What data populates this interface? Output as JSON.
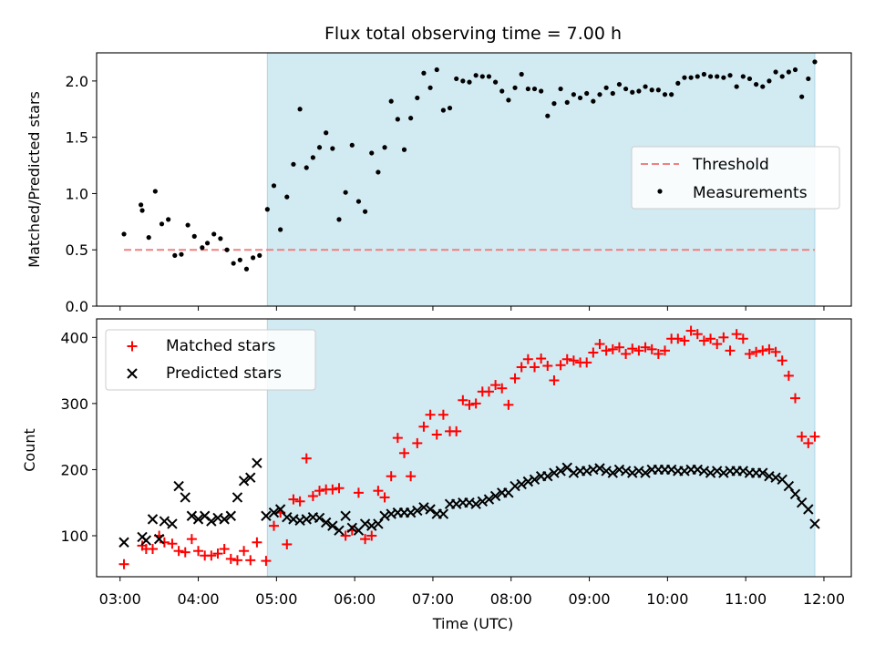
{
  "title": "Flux total observing time = 7.00 h",
  "xlabel": "Time (UTC)",
  "x_ticks": [
    "03:00",
    "04:00",
    "05:00",
    "06:00",
    "07:00",
    "08:00",
    "09:00",
    "10:00",
    "11:00",
    "12:00"
  ],
  "colors": {
    "shade": "#add8e6",
    "threshold": "#f08080",
    "matched": "#ff0000",
    "predicted": "#000000",
    "measurement": "#000000"
  },
  "chart_data": [
    {
      "type": "scatter",
      "ylabel": "Matched/Predicted stars",
      "xlim": [
        "02:42",
        "12:21"
      ],
      "ylim": [
        0,
        2.25
      ],
      "y_ticks": [
        "0.0",
        "0.5",
        "1.0",
        "1.5",
        "2.0"
      ],
      "shaded_span": [
        "04:53",
        "11:53"
      ],
      "legend": {
        "position": "center-right",
        "entries": [
          "Threshold",
          "Measurements"
        ]
      },
      "threshold": {
        "name": "Threshold",
        "value": 0.5,
        "x_range": [
          "03:03",
          "11:53"
        ]
      },
      "series": [
        {
          "name": "Measurements",
          "x": [
            "03:03",
            "03:16",
            "03:17",
            "03:22",
            "03:27",
            "03:32",
            "03:37",
            "03:42",
            "03:47",
            "03:52",
            "03:57",
            "04:03",
            "04:07",
            "04:12",
            "04:17",
            "04:22",
            "04:27",
            "04:32",
            "04:37",
            "04:42",
            "04:47",
            "04:53",
            "04:58",
            "05:03",
            "05:08",
            "05:13",
            "05:18",
            "05:23",
            "05:28",
            "05:33",
            "05:38",
            "05:43",
            "05:48",
            "05:53",
            "05:58",
            "06:03",
            "06:08",
            "06:13",
            "06:18",
            "06:23",
            "06:28",
            "06:33",
            "06:38",
            "06:43",
            "06:48",
            "06:53",
            "06:58",
            "07:03",
            "07:08",
            "07:13",
            "07:18",
            "07:23",
            "07:28",
            "07:33",
            "07:38",
            "07:43",
            "07:48",
            "07:53",
            "07:58",
            "08:03",
            "08:08",
            "08:13",
            "08:18",
            "08:23",
            "08:28",
            "08:33",
            "08:38",
            "08:43",
            "08:48",
            "08:53",
            "08:58",
            "09:03",
            "09:08",
            "09:13",
            "09:18",
            "09:23",
            "09:28",
            "09:33",
            "09:38",
            "09:43",
            "09:48",
            "09:53",
            "09:58",
            "10:03",
            "10:08",
            "10:13",
            "10:18",
            "10:23",
            "10:28",
            "10:33",
            "10:38",
            "10:43",
            "10:48",
            "10:53",
            "10:58",
            "11:03",
            "11:08",
            "11:13",
            "11:18",
            "11:23",
            "11:28",
            "11:33",
            "11:38",
            "11:43",
            "11:48",
            "11:53"
          ],
          "y": [
            0.64,
            0.9,
            0.85,
            0.61,
            1.02,
            0.73,
            0.77,
            0.45,
            0.46,
            0.72,
            0.62,
            0.52,
            0.56,
            0.64,
            0.6,
            0.5,
            0.38,
            0.41,
            0.33,
            0.43,
            0.45,
            0.86,
            1.07,
            0.68,
            0.97,
            1.26,
            1.75,
            1.23,
            1.32,
            1.41,
            1.54,
            1.4,
            0.77,
            1.01,
            1.43,
            0.93,
            0.84,
            1.36,
            1.19,
            1.41,
            1.82,
            1.66,
            1.39,
            1.67,
            1.85,
            2.07,
            1.94,
            2.1,
            1.74,
            1.76,
            2.02,
            2.0,
            1.99,
            2.05,
            2.04,
            2.04,
            1.99,
            1.91,
            1.83,
            1.94,
            2.06,
            1.93,
            1.93,
            1.91,
            1.69,
            1.8,
            1.93,
            1.81,
            1.88,
            1.85,
            1.89,
            1.82,
            1.88,
            1.94,
            1.89,
            1.97,
            1.93,
            1.9,
            1.91,
            1.95,
            1.92,
            1.92,
            1.88,
            1.88,
            1.98,
            2.03,
            2.03,
            2.04,
            2.06,
            2.04,
            2.04,
            2.03,
            2.05,
            1.95,
            2.04,
            2.02,
            1.97,
            1.95,
            2.0,
            2.08,
            2.04,
            2.08,
            2.1,
            1.86,
            2.02,
            2.17
          ]
        }
      ]
    },
    {
      "type": "scatter",
      "ylabel": "Count",
      "xlim": [
        "02:42",
        "12:21"
      ],
      "ylim": [
        38,
        428
      ],
      "y_ticks": [
        "100",
        "200",
        "300",
        "400"
      ],
      "shaded_span": [
        "04:53",
        "11:53"
      ],
      "legend": {
        "position": "top-left",
        "entries": [
          "Matched stars",
          "Predicted stars"
        ]
      },
      "series": [
        {
          "name": "Matched stars",
          "x": [
            "03:03",
            "03:17",
            "03:20",
            "03:25",
            "03:30",
            "03:34",
            "03:40",
            "03:45",
            "03:50",
            "03:55",
            "04:00",
            "04:05",
            "04:10",
            "04:15",
            "04:20",
            "04:25",
            "04:30",
            "04:35",
            "04:40",
            "04:45",
            "04:52",
            "04:58",
            "05:03",
            "05:08",
            "05:13",
            "05:18",
            "05:23",
            "05:28",
            "05:33",
            "05:38",
            "05:43",
            "05:48",
            "05:53",
            "05:58",
            "06:03",
            "06:08",
            "06:13",
            "06:18",
            "06:23",
            "06:28",
            "06:33",
            "06:38",
            "06:43",
            "06:48",
            "06:53",
            "06:58",
            "07:03",
            "07:08",
            "07:13",
            "07:18",
            "07:23",
            "07:28",
            "07:33",
            "07:38",
            "07:43",
            "07:48",
            "07:53",
            "07:58",
            "08:03",
            "08:08",
            "08:13",
            "08:18",
            "08:23",
            "08:28",
            "08:33",
            "08:38",
            "08:43",
            "08:48",
            "08:53",
            "08:58",
            "09:03",
            "09:08",
            "09:13",
            "09:18",
            "09:23",
            "09:28",
            "09:33",
            "09:38",
            "09:43",
            "09:48",
            "09:53",
            "09:58",
            "10:03",
            "10:08",
            "10:13",
            "10:18",
            "10:23",
            "10:28",
            "10:33",
            "10:38",
            "10:43",
            "10:48",
            "10:53",
            "10:58",
            "11:03",
            "11:08",
            "11:13",
            "11:18",
            "11:23",
            "11:28",
            "11:33",
            "11:38",
            "11:43",
            "11:48",
            "11:53"
          ],
          "y": [
            57,
            85,
            80,
            80,
            100,
            90,
            88,
            77,
            75,
            95,
            77,
            70,
            70,
            73,
            80,
            65,
            63,
            77,
            63,
            90,
            62,
            115,
            135,
            87,
            155,
            152,
            217,
            160,
            168,
            170,
            170,
            172,
            100,
            108,
            165,
            95,
            100,
            168,
            158,
            190,
            248,
            225,
            190,
            240,
            265,
            283,
            253,
            283,
            258,
            258,
            305,
            298,
            300,
            318,
            318,
            328,
            323,
            298,
            338,
            355,
            367,
            355,
            368,
            357,
            335,
            358,
            367,
            365,
            362,
            362,
            377,
            390,
            380,
            382,
            385,
            375,
            383,
            380,
            385,
            382,
            375,
            380,
            398,
            398,
            395,
            410,
            405,
            395,
            398,
            390,
            400,
            380,
            405,
            398,
            375,
            378,
            380,
            382,
            378,
            365,
            342,
            308,
            250,
            240,
            250
          ]
        },
        {
          "name": "Predicted stars",
          "x": [
            "03:03",
            "03:17",
            "03:20",
            "03:25",
            "03:30",
            "03:34",
            "03:40",
            "03:45",
            "03:50",
            "03:55",
            "04:00",
            "04:05",
            "04:10",
            "04:15",
            "04:20",
            "04:25",
            "04:30",
            "04:35",
            "04:40",
            "04:45",
            "04:52",
            "04:58",
            "05:03",
            "05:08",
            "05:13",
            "05:18",
            "05:23",
            "05:28",
            "05:33",
            "05:38",
            "05:43",
            "05:48",
            "05:53",
            "05:58",
            "06:03",
            "06:08",
            "06:13",
            "06:18",
            "06:23",
            "06:28",
            "06:33",
            "06:38",
            "06:43",
            "06:48",
            "06:53",
            "06:58",
            "07:03",
            "07:08",
            "07:13",
            "07:18",
            "07:23",
            "07:28",
            "07:33",
            "07:38",
            "07:43",
            "07:48",
            "07:53",
            "07:58",
            "08:03",
            "08:08",
            "08:13",
            "08:18",
            "08:23",
            "08:28",
            "08:33",
            "08:38",
            "08:43",
            "08:48",
            "08:53",
            "08:58",
            "09:03",
            "09:08",
            "09:13",
            "09:18",
            "09:23",
            "09:28",
            "09:33",
            "09:38",
            "09:43",
            "09:48",
            "09:53",
            "09:58",
            "10:03",
            "10:08",
            "10:13",
            "10:18",
            "10:23",
            "10:28",
            "10:33",
            "10:38",
            "10:43",
            "10:48",
            "10:53",
            "10:58",
            "11:03",
            "11:08",
            "11:13",
            "11:18",
            "11:23",
            "11:28",
            "11:33",
            "11:38",
            "11:43",
            "11:48",
            "11:53"
          ],
          "y": [
            90,
            98,
            93,
            125,
            95,
            122,
            118,
            175,
            158,
            130,
            125,
            130,
            122,
            127,
            125,
            130,
            158,
            183,
            188,
            210,
            130,
            135,
            140,
            128,
            125,
            123,
            125,
            128,
            127,
            120,
            115,
            108,
            130,
            112,
            108,
            118,
            115,
            118,
            130,
            133,
            135,
            135,
            135,
            138,
            143,
            140,
            133,
            133,
            148,
            148,
            150,
            150,
            148,
            152,
            155,
            160,
            165,
            165,
            175,
            178,
            182,
            185,
            190,
            190,
            195,
            198,
            203,
            195,
            198,
            198,
            200,
            202,
            198,
            195,
            200,
            198,
            195,
            198,
            195,
            200,
            200,
            200,
            200,
            198,
            198,
            200,
            200,
            198,
            195,
            198,
            195,
            198,
            198,
            198,
            195,
            195,
            195,
            190,
            188,
            185,
            175,
            163,
            150,
            140,
            118
          ]
        }
      ]
    }
  ]
}
